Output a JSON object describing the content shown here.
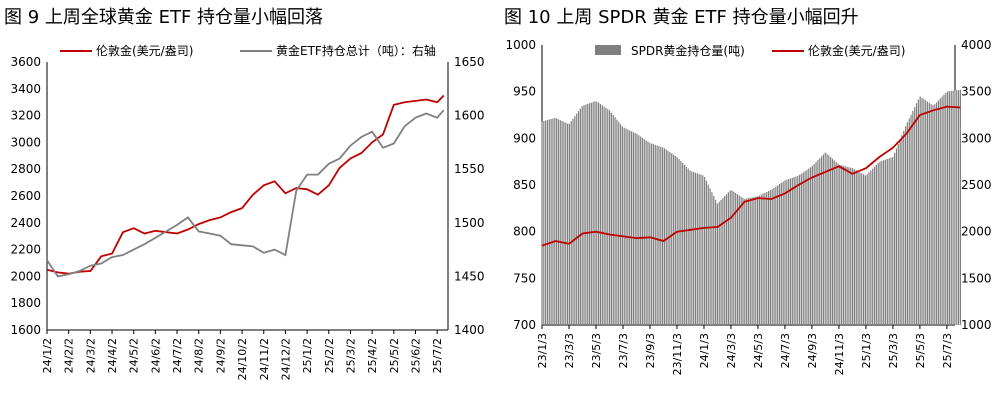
{
  "chart_data": [
    {
      "type": "line",
      "title": "图 9 上周全球黄金 ETF 持仓量小幅回落",
      "legend_placement": "top",
      "grid": false,
      "x_categories": [
        "24/1/2",
        "24/2/2",
        "24/3/2",
        "24/4/2",
        "24/5/2",
        "24/6/2",
        "24/7/2",
        "24/8/2",
        "24/9/2",
        "24/10/2",
        "24/11/2",
        "24/12/2",
        "25/1/2",
        "25/2/2",
        "25/3/2",
        "25/4/2",
        "25/5/2",
        "25/6/2",
        "25/7/2"
      ],
      "y_left": {
        "ticks": [
          "1600",
          "1800",
          "2000",
          "2200",
          "2400",
          "2600",
          "2800",
          "3000",
          "3200",
          "3400",
          "3600"
        ],
        "min": 1600,
        "max": 3600
      },
      "y_right": {
        "ticks": [
          "1400",
          "1450",
          "1500",
          "1550",
          "1600",
          "1650"
        ],
        "min": 1400,
        "max": 1650
      },
      "series": [
        {
          "name": "伦敦金(美元/盎司)",
          "axis": "left",
          "color": "#c00000",
          "x": [
            0,
            0.5,
            1,
            1.5,
            2,
            2.5,
            3,
            3.5,
            4,
            4.5,
            5,
            5.5,
            6,
            6.5,
            7,
            7.5,
            8,
            8.5,
            9,
            9.5,
            10,
            10.5,
            11,
            11.5,
            12,
            12.5,
            13,
            13.5,
            14,
            14.5,
            15,
            15.5,
            16,
            16.5,
            17,
            17.5,
            18,
            18.3
          ],
          "values": [
            2050,
            2030,
            2020,
            2035,
            2040,
            2150,
            2170,
            2330,
            2360,
            2320,
            2340,
            2330,
            2320,
            2350,
            2390,
            2420,
            2440,
            2480,
            2510,
            2610,
            2680,
            2710,
            2620,
            2660,
            2650,
            2610,
            2680,
            2810,
            2880,
            2920,
            3000,
            3060,
            3280,
            3300,
            3310,
            3320,
            3300,
            3350
          ]
        },
        {
          "name": "黄金ETF持仓总计（吨）：右轴",
          "axis": "right",
          "color": "#808080",
          "x": [
            0,
            0.5,
            1,
            1.5,
            2,
            2.5,
            3,
            3.5,
            4,
            4.5,
            5,
            5.5,
            6,
            6.5,
            7,
            7.5,
            8,
            8.5,
            9,
            9.5,
            10,
            10.5,
            11,
            11.5,
            12,
            12.5,
            13,
            13.5,
            14,
            14.5,
            15,
            15.5,
            16,
            16.5,
            17,
            17.5,
            18,
            18.3
          ],
          "values": [
            1465,
            1450,
            1452,
            1455,
            1460,
            1462,
            1468,
            1470,
            1475,
            1480,
            1486,
            1492,
            1498,
            1505,
            1492,
            1490,
            1488,
            1480,
            1479,
            1478,
            1472,
            1475,
            1470,
            1530,
            1545,
            1545,
            1555,
            1560,
            1572,
            1580,
            1585,
            1570,
            1574,
            1590,
            1598,
            1602,
            1598,
            1605
          ]
        }
      ]
    },
    {
      "type": "bar+line",
      "title": "图 10 上周 SPDR 黄金 ETF 持仓量小幅回升",
      "legend_placement": "top",
      "grid": false,
      "x_categories": [
        "23/1/3",
        "23/3/3",
        "23/5/3",
        "23/7/3",
        "23/9/3",
        "23/11/3",
        "24/1/3",
        "24/3/3",
        "24/5/3",
        "24/7/3",
        "24/9/3",
        "24/11/3",
        "25/1/3",
        "25/3/3",
        "25/5/3",
        "25/7/3"
      ],
      "y_left": {
        "ticks": [
          "700",
          "750",
          "800",
          "850",
          "900",
          "950",
          "1000"
        ],
        "min": 700,
        "max": 1000
      },
      "y_right": {
        "ticks": [
          "1000",
          "1500",
          "2000",
          "2500",
          "3000",
          "3500",
          "4000"
        ],
        "min": 1000,
        "max": 4000
      },
      "series": [
        {
          "name": "SPDR黄金持仓量(吨)",
          "axis": "left",
          "color": "#7f7f7f",
          "x": [
            0,
            0.5,
            1,
            1.5,
            2,
            2.5,
            3,
            3.5,
            4,
            4.5,
            5,
            5.5,
            6,
            6.5,
            7,
            7.5,
            8,
            8.5,
            9,
            9.5,
            10,
            10.5,
            11,
            11.5,
            12,
            12.5,
            13,
            13.5,
            14,
            14.5,
            15,
            15.5
          ],
          "values": [
            918,
            922,
            915,
            935,
            940,
            930,
            912,
            905,
            895,
            890,
            880,
            865,
            860,
            830,
            845,
            835,
            838,
            845,
            855,
            860,
            870,
            885,
            872,
            868,
            860,
            875,
            880,
            915,
            945,
            935,
            950,
            952
          ]
        },
        {
          "name": "伦敦金(美元/盎司)",
          "axis": "right",
          "color": "#c00000",
          "x": [
            0,
            0.5,
            1,
            1.5,
            2,
            2.5,
            3,
            3.5,
            4,
            4.5,
            5,
            5.5,
            6,
            6.5,
            7,
            7.5,
            8,
            8.5,
            9,
            9.5,
            10,
            10.5,
            11,
            11.5,
            12,
            12.5,
            13,
            13.5,
            14,
            14.5,
            15,
            15.5
          ],
          "values": [
            1850,
            1900,
            1870,
            1980,
            2000,
            1970,
            1950,
            1930,
            1940,
            1900,
            2000,
            2020,
            2040,
            2050,
            2150,
            2320,
            2360,
            2350,
            2410,
            2500,
            2580,
            2640,
            2700,
            2620,
            2680,
            2800,
            2900,
            3050,
            3250,
            3300,
            3340,
            3330
          ]
        }
      ]
    }
  ]
}
